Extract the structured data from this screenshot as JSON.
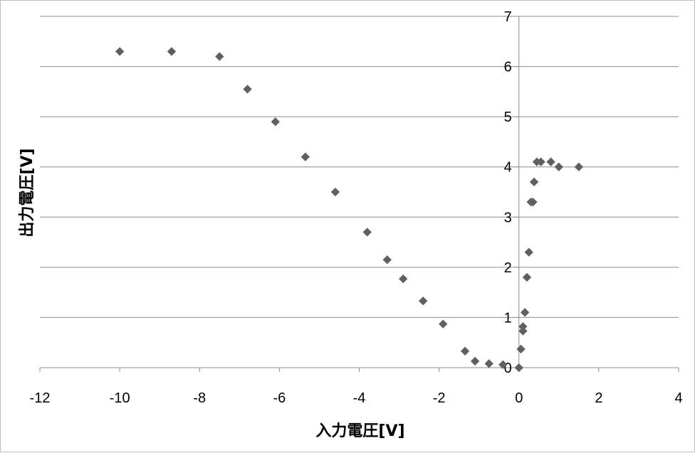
{
  "chart_data": {
    "type": "scatter",
    "xlabel": "入力電圧[V]",
    "ylabel": "出力電圧[V]",
    "xlim": [
      -12,
      4
    ],
    "ylim": [
      0,
      7
    ],
    "xticks": [
      -12,
      -10,
      -8,
      -6,
      -4,
      -2,
      0,
      2,
      4
    ],
    "yticks": [
      0,
      1,
      2,
      3,
      4,
      5,
      6,
      7
    ],
    "grid": "horizontal",
    "legend": "none",
    "marker": "diamond",
    "marker_color": "#5f5f5f",
    "series": [
      {
        "points": [
          [
            -10.0,
            6.3
          ],
          [
            -8.7,
            6.3
          ],
          [
            -7.5,
            6.2
          ],
          [
            -6.8,
            5.55
          ],
          [
            -6.1,
            4.9
          ],
          [
            -5.35,
            4.2
          ],
          [
            -4.6,
            3.5
          ],
          [
            -3.8,
            2.7
          ],
          [
            -3.3,
            2.15
          ],
          [
            -2.9,
            1.77
          ],
          [
            -2.4,
            1.33
          ],
          [
            -1.9,
            0.87
          ],
          [
            -1.35,
            0.33
          ],
          [
            -1.1,
            0.13
          ],
          [
            -0.75,
            0.08
          ],
          [
            -0.4,
            0.06
          ],
          [
            0.0,
            0.0
          ],
          [
            0.05,
            0.37
          ],
          [
            0.1,
            0.73
          ],
          [
            0.1,
            0.82
          ],
          [
            0.15,
            1.1
          ],
          [
            0.2,
            1.8
          ],
          [
            0.25,
            2.3
          ],
          [
            0.3,
            3.3
          ],
          [
            0.35,
            3.3
          ],
          [
            0.38,
            3.7
          ],
          [
            0.45,
            4.1
          ],
          [
            0.55,
            4.1
          ],
          [
            0.8,
            4.1
          ],
          [
            1.0,
            4.0
          ],
          [
            1.5,
            4.0
          ]
        ]
      }
    ]
  }
}
